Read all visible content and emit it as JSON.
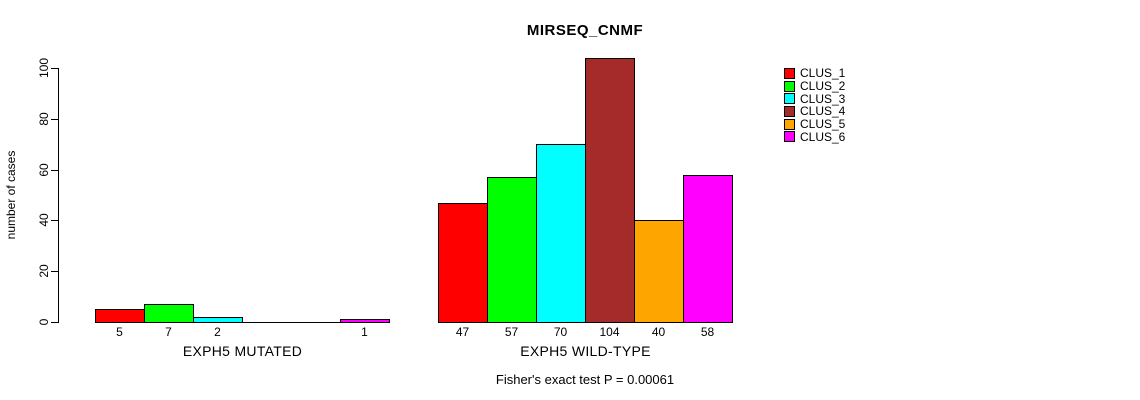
{
  "title": "MIRSEQ_CNMF",
  "annotation": "Fisher's exact test P = 0.00061",
  "chart_data": {
    "type": "bar",
    "title": "MIRSEQ_CNMF",
    "xlabel": "",
    "ylabel": "number of cases",
    "ylim": [
      0,
      100
    ],
    "yticks": [
      0,
      20,
      40,
      60,
      80,
      100
    ],
    "grid": false,
    "legend_position": "right",
    "categories": [
      "EXPH5 MUTATED",
      "EXPH5 WILD-TYPE"
    ],
    "series": [
      {
        "name": "CLUS_1",
        "color": "#FF0000",
        "values": [
          5,
          47
        ]
      },
      {
        "name": "CLUS_2",
        "color": "#00FF00",
        "values": [
          7,
          57
        ]
      },
      {
        "name": "CLUS_3",
        "color": "#00FFFF",
        "values": [
          2,
          70
        ]
      },
      {
        "name": "CLUS_4",
        "color": "#A52A2A",
        "values": [
          0,
          104
        ]
      },
      {
        "name": "CLUS_5",
        "color": "#FFA500",
        "values": [
          0,
          40
        ]
      },
      {
        "name": "CLUS_6",
        "color": "#FF00FF",
        "values": [
          1,
          58
        ]
      }
    ],
    "bar_value_labels": "shown under each nonzero bar",
    "annotation": "Fisher's exact test P = 0.00061"
  }
}
